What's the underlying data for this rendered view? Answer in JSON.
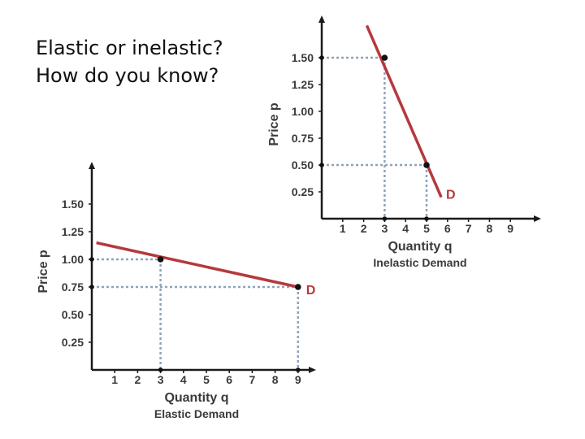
{
  "slide": {
    "title_line1": "Elastic or inelastic?",
    "title_line2": "How do you know?"
  },
  "colors": {
    "curve": "#b5393c",
    "axis": "#1a1a1a",
    "guide": "#8fa3b8",
    "text": "#3a3a3a"
  },
  "chart_data": [
    {
      "id": "elastic",
      "type": "line",
      "title": "Elastic Demand",
      "xlabel": "Quantity q",
      "ylabel": "Price p",
      "xlim": [
        0,
        9
      ],
      "ylim": [
        0,
        1.5
      ],
      "x_ticks": [
        1,
        2,
        3,
        4,
        5,
        6,
        7,
        8,
        9
      ],
      "y_ticks": [
        "0.25",
        "0.50",
        "0.75",
        "1.00",
        "1.25",
        "1.50"
      ],
      "series": [
        {
          "name": "D",
          "x": [
            0.2,
            9
          ],
          "y": [
            1.15,
            0.75
          ]
        }
      ],
      "points": [
        {
          "x": 3,
          "y": 1.0
        },
        {
          "x": 9,
          "y": 0.75
        }
      ]
    },
    {
      "id": "inelastic",
      "type": "line",
      "title": "Inelastic Demand",
      "xlabel": "Quantity q",
      "ylabel": "Price p",
      "xlim": [
        0,
        9
      ],
      "ylim": [
        0,
        1.5
      ],
      "x_ticks": [
        1,
        2,
        3,
        4,
        5,
        6,
        7,
        8,
        9
      ],
      "y_ticks": [
        "0.25",
        "0.50",
        "0.75",
        "1.00",
        "1.25",
        "1.50"
      ],
      "series": [
        {
          "name": "D",
          "x": [
            2.15,
            5.7
          ],
          "y": [
            1.8,
            0.2
          ]
        }
      ],
      "points": [
        {
          "x": 3,
          "y": 1.5
        },
        {
          "x": 5,
          "y": 0.5
        }
      ]
    }
  ]
}
